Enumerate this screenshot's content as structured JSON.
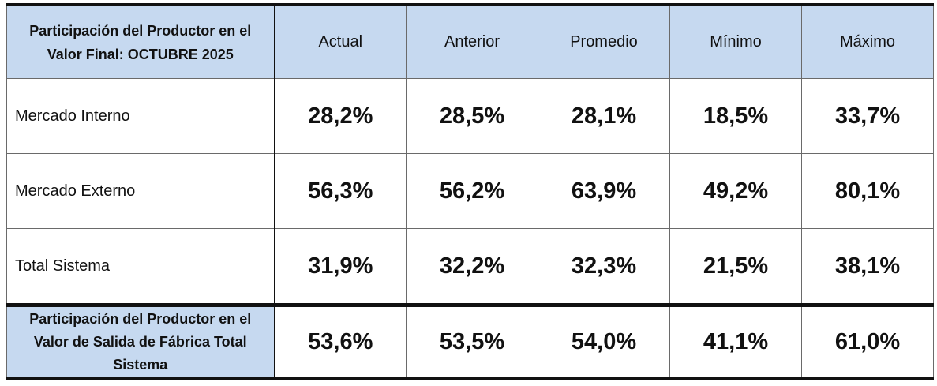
{
  "table": {
    "header": [
      "Participación del Productor en el Valor Final:  OCTUBRE  2025",
      "Actual",
      "Anterior",
      "Promedio",
      "Mínimo",
      "Máximo"
    ],
    "rows": [
      [
        "Mercado Interno",
        "28,2%",
        "28,5%",
        "28,1%",
        "18,5%",
        "33,7%"
      ],
      [
        "Mercado Externo",
        "56,3%",
        "56,2%",
        "63,9%",
        "49,2%",
        "80,1%"
      ],
      [
        "Total Sistema",
        "31,9%",
        "32,2%",
        "32,3%",
        "21,5%",
        "38,1%"
      ],
      [
        "Participación del Productor en el Valor de Salida de Fábrica Total Sistema",
        "53,6%",
        "53,5%",
        "54,0%",
        "41,1%",
        "61,0%"
      ]
    ]
  }
}
